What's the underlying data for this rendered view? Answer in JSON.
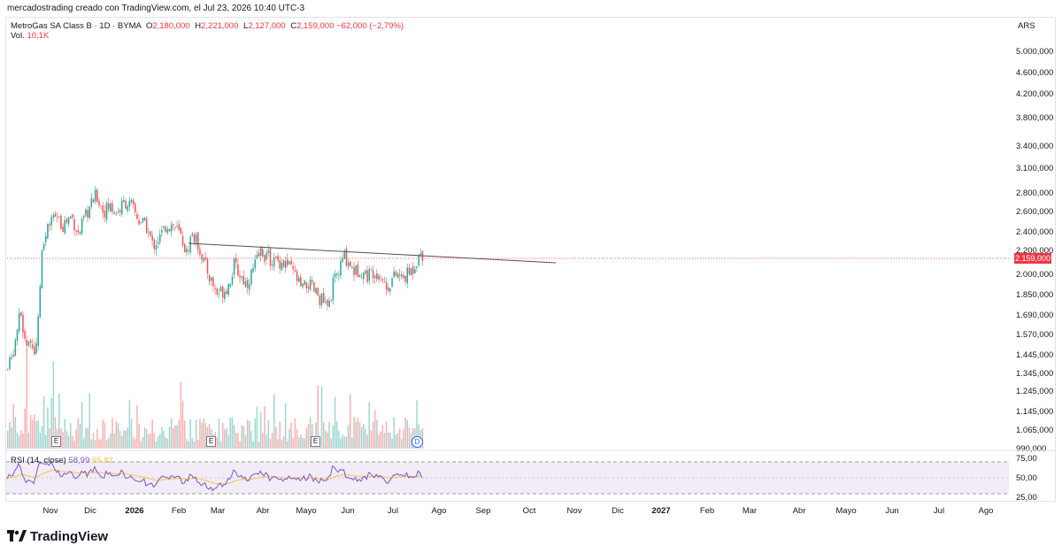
{
  "header": {
    "attribution": "mercadostrading creado con TradingView.com, el Jul 23, 2026 10:40 UTC-3"
  },
  "legend": {
    "symbol": "MetroGas SA Class B · 1D · BYMA",
    "o_label": "O",
    "o_value": "2,180,000",
    "h_label": "H",
    "h_value": "2,221,000",
    "l_label": "L",
    "l_value": "2,127,000",
    "c_label": "C",
    "c_value": "2,159,000",
    "change": "−62,000 (−2,79%)",
    "vol_label": "Vol.",
    "vol_value": "10,1K"
  },
  "rsi": {
    "label": "RSI (14, close)",
    "value1": "58,99",
    "value2": "55,82",
    "axis": [
      "75,00",
      "50,00",
      "25,00"
    ]
  },
  "price_axis": {
    "currency": "ARS",
    "ticks": [
      "5.000,000",
      "4.600,000",
      "4.200,000",
      "3.800,000",
      "3.400,000",
      "3.100,000",
      "2.800,000",
      "2.600,000",
      "2.400,000",
      "2.200,000",
      "2.000,000",
      "1.850,000",
      "1.690,000",
      "1.570,000",
      "1.445,000",
      "1.345,000",
      "1.245,000",
      "1.145,000",
      "1.065,000",
      "990,000"
    ],
    "last_price": "2.159,000"
  },
  "time_axis": {
    "labels": [
      "Nov",
      "Dic",
      "2026",
      "Feb",
      "Mar",
      "Abr",
      "Mayo",
      "Jun",
      "Jul",
      "Ago",
      "Sep",
      "Oct",
      "Nov",
      "Dic",
      "2027",
      "Feb",
      "Mar",
      "Abr",
      "Mayo",
      "Jun",
      "Jul",
      "Ago"
    ]
  },
  "markers": {
    "earnings": "E",
    "dividend": "D"
  },
  "brand": {
    "name": "TradingView"
  },
  "colors": {
    "up": "#26a69a",
    "down": "#ef5350",
    "rsi_line": "#7e57c2",
    "rsi_ma": "#f7c548",
    "rsi_band": "#ede7f6",
    "trendline": "#5d4a4a",
    "last_price": "#f23645"
  },
  "chart_data": {
    "type": "candlestick",
    "series": [
      {
        "name": "MetroGas SA Class B",
        "close_points": [
          [
            "Oct",
            1350
          ],
          [
            "Oct",
            1600
          ],
          [
            "Oct",
            1500
          ],
          [
            "Nov",
            2050
          ],
          [
            "Nov",
            2450
          ],
          [
            "Nov",
            2500
          ],
          [
            "Nov",
            2400
          ],
          [
            "Dic",
            2700
          ],
          [
            "Dic",
            2600
          ],
          [
            "Dic",
            2650
          ],
          [
            "Dic",
            2550
          ],
          [
            "2026",
            2450
          ],
          [
            "2026",
            2300
          ],
          [
            "2026",
            2420
          ],
          [
            "Feb",
            2250
          ],
          [
            "Feb",
            2150
          ],
          [
            "Mar",
            1850
          ],
          [
            "Mar",
            2050
          ],
          [
            "Abr",
            2200
          ],
          [
            "Abr",
            2050
          ],
          [
            "Mayo",
            1880
          ],
          [
            "Mayo",
            1750
          ],
          [
            "Jun",
            2100
          ],
          [
            "Jun",
            2000
          ],
          [
            "Jul",
            1950
          ],
          [
            "Jul",
            2050
          ],
          [
            "Jul",
            2159
          ]
        ]
      }
    ],
    "last_ohlc": {
      "open": 2180000,
      "high": 2221000,
      "low": 2127000,
      "close": 2159000
    },
    "scale": "log",
    "ylim": [
      990000,
      5000000
    ],
    "rsi_ylim": [
      25,
      75
    ],
    "rsi_last": [
      58.99,
      55.82
    ]
  }
}
